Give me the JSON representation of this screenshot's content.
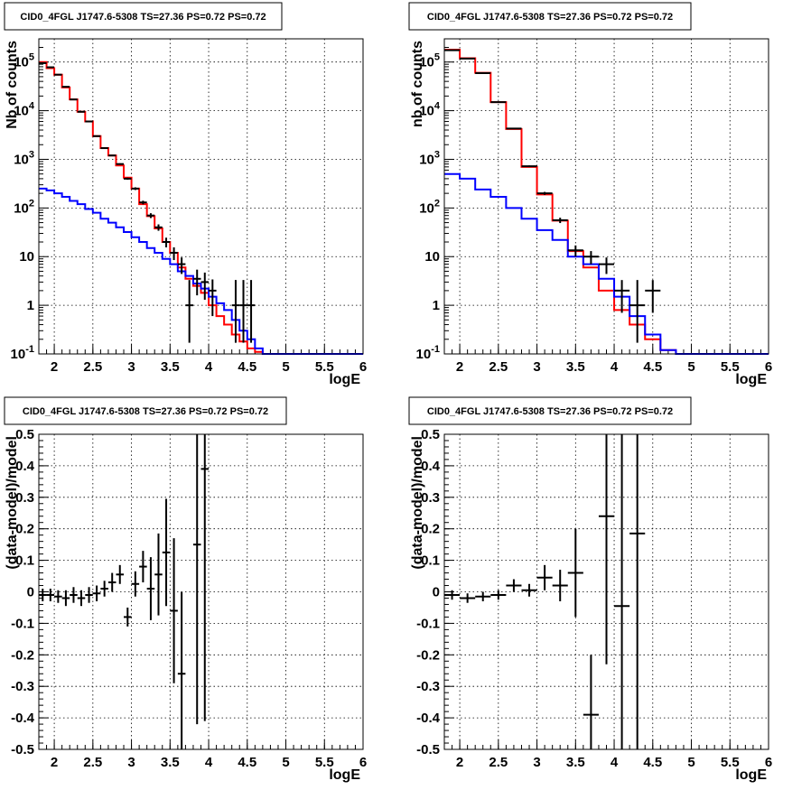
{
  "chart_data": [
    {
      "type": "line",
      "title": "CID0_4FGL J1747.6-5308 TS=27.36 PS=0.72 PS=0.72",
      "xlabel": "logE",
      "ylabel": "Nb of counts",
      "xlim": [
        1.8,
        6.0
      ],
      "ylim": [
        0.1,
        300000
      ],
      "yscale": "log",
      "grid": true,
      "xticks": [
        2,
        2.5,
        3,
        3.5,
        4,
        4.5,
        5,
        5.5,
        6
      ],
      "xtick_labels": [
        "2",
        "2.5",
        "3",
        "3.5",
        "4",
        "4.5",
        "5",
        "5.5",
        "6"
      ],
      "yticks": [
        0.1,
        1,
        10,
        100,
        1000,
        10000,
        100000
      ],
      "ytick_labels": [
        "10^-1",
        "1",
        "10",
        "10^2",
        "10^3",
        "10^4",
        "10^5"
      ],
      "bin_width": 0.1,
      "series": [
        {
          "color": "#ff0000",
          "style": "step",
          "x": [
            1.8,
            1.9,
            2.0,
            2.1,
            2.2,
            2.3,
            2.4,
            2.5,
            2.6,
            2.7,
            2.8,
            2.9,
            3.0,
            3.1,
            3.2,
            3.3,
            3.4,
            3.5,
            3.6,
            3.7,
            3.8,
            3.9,
            4.0,
            4.1,
            4.2,
            4.3,
            4.4,
            4.5,
            4.6,
            4.7,
            4.8,
            4.9,
            5.0,
            5.1,
            5.2,
            5.3,
            5.4,
            5.5,
            5.6,
            5.7,
            5.8,
            5.9
          ],
          "values": [
            100000,
            75000,
            55000,
            30000,
            17000,
            9500,
            6000,
            3000,
            1700,
            1200,
            750,
            420,
            250,
            120,
            68,
            38,
            20,
            12,
            6,
            3.5,
            2.5,
            1.8,
            1.0,
            0.6,
            0.4,
            0.25,
            0.18,
            0.13,
            0.11,
            0.1,
            0.1,
            0.1,
            0.1,
            0.1,
            0.1,
            0.1,
            0.1,
            0.1,
            0.1,
            0.1,
            0.1,
            0.1
          ]
        },
        {
          "color": "#0000ff",
          "style": "step",
          "x": [
            1.8,
            1.9,
            2.0,
            2.1,
            2.2,
            2.3,
            2.4,
            2.5,
            2.6,
            2.7,
            2.8,
            2.9,
            3.0,
            3.1,
            3.2,
            3.3,
            3.4,
            3.5,
            3.6,
            3.7,
            3.8,
            3.9,
            4.0,
            4.1,
            4.2,
            4.3,
            4.4,
            4.5,
            4.6,
            4.7,
            4.8,
            4.9,
            5.0,
            5.1,
            5.2,
            5.3,
            5.4,
            5.5,
            5.6,
            5.7,
            5.8,
            5.9
          ],
          "values": [
            250,
            230,
            200,
            170,
            140,
            120,
            95,
            80,
            60,
            50,
            40,
            32,
            25,
            20,
            15,
            12,
            9,
            7,
            5,
            4,
            2.8,
            2.2,
            1.5,
            1.1,
            0.8,
            0.5,
            0.3,
            0.2,
            0.13,
            0.1,
            0.1,
            0.1,
            0.1,
            0.1,
            0.1,
            0.1,
            0.1,
            0.1,
            0.1,
            0.1,
            0.1,
            0.1
          ]
        },
        {
          "color": "#000000",
          "style": "errorbar",
          "x": [
            1.85,
            1.95,
            2.05,
            2.15,
            2.25,
            2.35,
            2.45,
            2.55,
            2.65,
            2.75,
            2.85,
            2.95,
            3.05,
            3.15,
            3.25,
            3.35,
            3.45,
            3.55,
            3.65,
            3.75,
            3.85,
            3.95,
            4.05,
            4.35,
            4.45,
            4.55
          ],
          "values": [
            95000,
            78000,
            55000,
            31000,
            17000,
            9500,
            6000,
            3000,
            1700,
            1200,
            800,
            400,
            250,
            130,
            70,
            40,
            20,
            12,
            7,
            1,
            3.5,
            3,
            2,
            1,
            1,
            1
          ],
          "err_low": [
            300,
            280,
            240,
            180,
            130,
            100,
            80,
            55,
            40,
            35,
            28,
            20,
            16,
            11,
            8,
            6,
            4.5,
            3.5,
            2.6,
            0.83,
            1.9,
            1.7,
            1.4,
            0.83,
            0.83,
            0.83
          ],
          "err_high": [
            300,
            280,
            240,
            180,
            130,
            100,
            80,
            55,
            40,
            35,
            28,
            20,
            16,
            11,
            8,
            6,
            4.5,
            3.5,
            2.6,
            2.3,
            1.9,
            1.7,
            1.4,
            2.3,
            2.3,
            2.3
          ]
        }
      ]
    },
    {
      "type": "line",
      "title": "CID0_4FGL J1747.6-5308 TS=27.36 PS=0.72 PS=0.72",
      "xlabel": "logE",
      "ylabel": "nb of counts",
      "xlim": [
        1.8,
        6.0
      ],
      "ylim": [
        0.1,
        300000
      ],
      "yscale": "log",
      "grid": true,
      "xticks": [
        2,
        2.5,
        3,
        3.5,
        4,
        4.5,
        5,
        5.5,
        6
      ],
      "xtick_labels": [
        "2",
        "2.5",
        "3",
        "3.5",
        "4",
        "4.5",
        "5",
        "5.5",
        "6"
      ],
      "yticks": [
        0.1,
        1,
        10,
        100,
        1000,
        10000,
        100000
      ],
      "ytick_labels": [
        "10^-1",
        "1",
        "10",
        "10^2",
        "10^3",
        "10^4",
        "10^5"
      ],
      "bin_width": 0.2,
      "series": [
        {
          "color": "#ff0000",
          "style": "step",
          "x": [
            1.8,
            2.0,
            2.2,
            2.4,
            2.6,
            2.8,
            3.0,
            3.2,
            3.4,
            3.6,
            3.8,
            4.0,
            4.2,
            4.4,
            4.6,
            4.8,
            5.0,
            5.2,
            5.4,
            5.6,
            5.8
          ],
          "values": [
            180000,
            120000,
            60000,
            15000,
            4200,
            700,
            190,
            55,
            13,
            6,
            2.0,
            0.8,
            0.4,
            0.2,
            0.12,
            0.1,
            0.1,
            0.1,
            0.1,
            0.1,
            0.1
          ]
        },
        {
          "color": "#0000ff",
          "style": "step",
          "x": [
            1.8,
            2.0,
            2.2,
            2.4,
            2.6,
            2.8,
            3.0,
            3.2,
            3.4,
            3.6,
            3.8,
            4.0,
            4.2,
            4.4,
            4.6,
            4.8,
            5.0,
            5.2,
            5.4,
            5.6,
            5.8
          ],
          "values": [
            500,
            400,
            240,
            170,
            100,
            60,
            35,
            22,
            10,
            7,
            3.5,
            1.5,
            0.6,
            0.25,
            0.12,
            0.1,
            0.1,
            0.1,
            0.1,
            0.1,
            0.1
          ]
        },
        {
          "color": "#000000",
          "style": "errorbar",
          "x": [
            1.9,
            2.1,
            2.3,
            2.5,
            2.7,
            2.9,
            3.1,
            3.3,
            3.5,
            3.7,
            3.9,
            4.1,
            4.3,
            4.5
          ],
          "values": [
            175000,
            118000,
            59000,
            15000,
            4300,
            720,
            200,
            56,
            13.5,
            10,
            7,
            2,
            1,
            2
          ],
          "err_low": [
            420,
            340,
            240,
            120,
            66,
            27,
            14,
            7,
            3.5,
            3,
            2.6,
            1.3,
            0.83,
            1.3
          ],
          "err_high": [
            420,
            340,
            240,
            120,
            66,
            27,
            14,
            7,
            3.5,
            3,
            2.6,
            1.3,
            2.3,
            1.3
          ]
        }
      ]
    },
    {
      "type": "scatter",
      "title": "CID0_4FGL J1747.6-5308 TS=27.36 PS=0.72 PS=0.72",
      "xlabel": "logE",
      "ylabel": "(data-model)/model",
      "xlim": [
        1.8,
        6.0
      ],
      "ylim": [
        -0.5,
        0.5
      ],
      "grid": true,
      "xticks": [
        2,
        2.5,
        3,
        3.5,
        4,
        4.5,
        5,
        5.5,
        6
      ],
      "xtick_labels": [
        "2",
        "2.5",
        "3",
        "3.5",
        "4",
        "4.5",
        "5",
        "5.5",
        "6"
      ],
      "yticks": [
        -0.5,
        -0.4,
        -0.3,
        -0.2,
        -0.1,
        0,
        0.1,
        0.2,
        0.3,
        0.4,
        0.5
      ],
      "ytick_labels": [
        "-0.5",
        "-0.4",
        "-0.3",
        "-0.2",
        "-0.1",
        "0",
        "0.1",
        "0.2",
        "0.3",
        "0.4",
        "0.5"
      ],
      "bin_width": 0.1,
      "series": [
        {
          "color": "#000000",
          "style": "errorbar",
          "x": [
            1.85,
            1.95,
            2.05,
            2.15,
            2.25,
            2.35,
            2.45,
            2.55,
            2.65,
            2.75,
            2.85,
            2.95,
            3.05,
            3.15,
            3.25,
            3.35,
            3.45,
            3.55,
            3.65,
            3.85,
            3.95
          ],
          "values": [
            -0.01,
            -0.01,
            -0.015,
            -0.02,
            -0.01,
            -0.02,
            -0.01,
            -0.005,
            0.01,
            0.03,
            0.055,
            -0.08,
            0.025,
            0.08,
            0.01,
            0.055,
            0.125,
            -0.06,
            -0.26,
            0.15,
            0.39
          ],
          "err_low": [
            0.02,
            0.02,
            0.02,
            0.025,
            0.025,
            0.025,
            0.025,
            0.025,
            0.025,
            0.03,
            0.03,
            0.03,
            0.04,
            0.05,
            0.1,
            0.13,
            0.17,
            0.23,
            0.26,
            0.57,
            0.8
          ],
          "err_high": [
            0.02,
            0.02,
            0.02,
            0.025,
            0.025,
            0.025,
            0.025,
            0.025,
            0.025,
            0.03,
            0.03,
            0.03,
            0.04,
            0.05,
            0.1,
            0.13,
            0.17,
            0.23,
            0.26,
            0.57,
            0.8
          ]
        }
      ]
    },
    {
      "type": "scatter",
      "title": "CID0_4FGL J1747.6-5308 TS=27.36 PS=0.72 PS=0.72",
      "xlabel": "logE",
      "ylabel": "(data-model)/model",
      "xlim": [
        1.8,
        6.0
      ],
      "ylim": [
        -0.5,
        0.5
      ],
      "grid": true,
      "xticks": [
        2,
        2.5,
        3,
        3.5,
        4,
        4.5,
        5,
        5.5,
        6
      ],
      "xtick_labels": [
        "2",
        "2.5",
        "3",
        "3.5",
        "4",
        "4.5",
        "5",
        "5.5",
        "6"
      ],
      "yticks": [
        -0.5,
        -0.4,
        -0.3,
        -0.2,
        -0.1,
        0,
        0.1,
        0.2,
        0.3,
        0.4,
        0.5
      ],
      "ytick_labels": [
        "-0.5",
        "-0.4",
        "-0.3",
        "-0.2",
        "-0.1",
        "0",
        "0.1",
        "0.2",
        "0.3",
        "0.4",
        "0.5"
      ],
      "bin_width": 0.2,
      "series": [
        {
          "color": "#000000",
          "style": "errorbar",
          "x": [
            1.9,
            2.1,
            2.3,
            2.5,
            2.7,
            2.9,
            3.1,
            3.3,
            3.5,
            3.7,
            3.9,
            4.1,
            4.3
          ],
          "values": [
            -0.01,
            -0.02,
            -0.015,
            -0.01,
            0.02,
            0.005,
            0.045,
            0.02,
            0.06,
            -0.39,
            0.24,
            -0.045,
            0.185
          ],
          "err_low": [
            0.015,
            0.015,
            0.015,
            0.015,
            0.02,
            0.02,
            0.04,
            0.05,
            0.14,
            0.19,
            0.47,
            0.6,
            0.8
          ],
          "err_high": [
            0.015,
            0.015,
            0.015,
            0.015,
            0.02,
            0.02,
            0.04,
            0.05,
            0.14,
            0.19,
            0.47,
            0.6,
            0.8
          ]
        }
      ]
    }
  ]
}
